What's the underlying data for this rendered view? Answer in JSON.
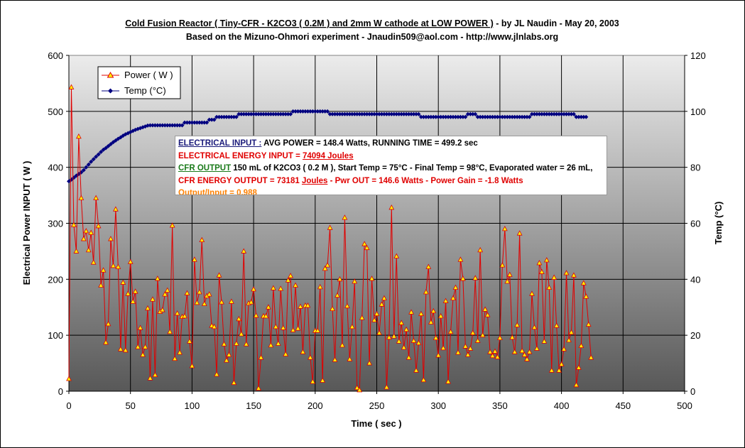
{
  "chart_data": {
    "type": "line",
    "title": "Cold Fusion Reactor ( Tiny-CFR - K2CO3 ( 0.2M ) and 2mm W cathode at LOW POWER )",
    "title_suffix": " - by JL Naudin - May 20, 2003",
    "subtitle": "Based on the Mizuno-Ohmori experiment - Jnaudin509@aol.com - http://www.jlnlabs.org",
    "xlabel": "Time ( sec )",
    "ylabel_left": "Electrical Power INPUT ( W )",
    "ylabel_right": "Temp (°C)",
    "xlim": [
      0,
      500
    ],
    "ylim_left": [
      0,
      600
    ],
    "ylim_right": [
      0,
      120
    ],
    "xticks": [
      "0",
      "50",
      "100",
      "150",
      "200",
      "250",
      "300",
      "350",
      "400",
      "450",
      "500"
    ],
    "yticks_left": [
      "0",
      "100",
      "200",
      "300",
      "400",
      "500",
      "600"
    ],
    "yticks_right": [
      "0",
      "20",
      "40",
      "60",
      "80",
      "100",
      "120"
    ],
    "grid": true,
    "legend_position": "top-left",
    "colors": {
      "power": "#e00000",
      "power_marker": "#ffff00",
      "temp": "#000080",
      "plot_top": "#e8e8e8",
      "plot_bottom": "#5a5a5a"
    },
    "series": [
      {
        "name": "Power ( W )",
        "axis": "left",
        "x_start": 0,
        "x_step": 2,
        "values": [
          22,
          543,
          297,
          250,
          455,
          345,
          272,
          286,
          252,
          283,
          230,
          345,
          295,
          189,
          216,
          87,
          120,
          272,
          224,
          325,
          222,
          75,
          194,
          73,
          174,
          231,
          160,
          178,
          79,
          113,
          65,
          79,
          148,
          23,
          164,
          29,
          201,
          142,
          145,
          173,
          180,
          106,
          296,
          58,
          139,
          69,
          133,
          134,
          175,
          89,
          45,
          235,
          158,
          177,
          270,
          156,
          170,
          173,
          117,
          115,
          30,
          207,
          159,
          84,
          55,
          65,
          160,
          15,
          85,
          129,
          102,
          250,
          84,
          157,
          159,
          182,
          135,
          5,
          60,
          134,
          134,
          150,
          82,
          184,
          115,
          85,
          183,
          113,
          66,
          198,
          206,
          109,
          189,
          112,
          151,
          70,
          153,
          153,
          60,
          17,
          108,
          108,
          186,
          19,
          219,
          225,
          292,
          147,
          56,
          171,
          200,
          82,
          310,
          152,
          57,
          115,
          196,
          6,
          2,
          131,
          263,
          256,
          50,
          201,
          127,
          138,
          104,
          155,
          166,
          7,
          96,
          328,
          98,
          241,
          89,
          122,
          78,
          110,
          60,
          141,
          90,
          37,
          86,
          138,
          20,
          177,
          222,
          123,
          143,
          95,
          64,
          134,
          77,
          161,
          17,
          106,
          166,
          185,
          69,
          235,
          201,
          80,
          65,
          76,
          104,
          202,
          90,
          252,
          100,
          146,
          136,
          70,
          63,
          71,
          61,
          95,
          225,
          290,
          196,
          208,
          96,
          70,
          118,
          282,
          72,
          65,
          57,
          70,
          174,
          114,
          76,
          229,
          213,
          89,
          234,
          185,
          37,
          203,
          117,
          37,
          48,
          75,
          211,
          91,
          105,
          207,
          11,
          42,
          81,
          193,
          169,
          119,
          60
        ]
      },
      {
        "name": "Temp (°C)",
        "axis": "right",
        "x_start": 0,
        "x_step": 2,
        "values": [
          75,
          75.6,
          76.3,
          77,
          77.6,
          78.2,
          79,
          80,
          81,
          82,
          82.9,
          83.8,
          84.6,
          85.5,
          86.3,
          86.9,
          87.6,
          88.3,
          89,
          89.6,
          90.2,
          90.7,
          91.3,
          91.8,
          92.2,
          92.6,
          93,
          93.4,
          93.7,
          94,
          94.3,
          94.6,
          94.9,
          95,
          95,
          95,
          95,
          95,
          95,
          95,
          95,
          95,
          95,
          95,
          95,
          95,
          95,
          96,
          96,
          96,
          96,
          96,
          96,
          96,
          96,
          96,
          96,
          97,
          97,
          97,
          98,
          98,
          98,
          98,
          98,
          98,
          98,
          98,
          98,
          99,
          99,
          99,
          99,
          99,
          99,
          99,
          99,
          99,
          99,
          99,
          99,
          99,
          99,
          99,
          99,
          99,
          99,
          99,
          99,
          99,
          99,
          100,
          100,
          100,
          100,
          100,
          100,
          100,
          100,
          100,
          100,
          100,
          100,
          100,
          100,
          100,
          99,
          99,
          99,
          99,
          99,
          99,
          99,
          99,
          99,
          99,
          99,
          99,
          99,
          99,
          99,
          99,
          99,
          99,
          99,
          99,
          99,
          99,
          99,
          99,
          99,
          99,
          99,
          99,
          99,
          99,
          99,
          99,
          99,
          99,
          99,
          99,
          99,
          98,
          98,
          98,
          98,
          98,
          98,
          98,
          98,
          98,
          98,
          98,
          98,
          98,
          98,
          98,
          98,
          98,
          98,
          98,
          99,
          99,
          99,
          99,
          98,
          98,
          98,
          98,
          98,
          98,
          98,
          98,
          98,
          98,
          98,
          98,
          98,
          98,
          98,
          98,
          98,
          98,
          98,
          98,
          98,
          98,
          99,
          99,
          99,
          99,
          99,
          99,
          99,
          99,
          99,
          99,
          99,
          99,
          99,
          99,
          99,
          99,
          99,
          99,
          98,
          98,
          98,
          98,
          98
        ]
      }
    ]
  },
  "legend": {
    "power_label": "Power ( W )",
    "temp_label": "Temp (°C)"
  },
  "info_box": {
    "line1_head": "ELECTRICAL INPUT :",
    "line1_rest": " AVG POWER = 148.4 Watts, RUNNING TIME = 499.2 sec",
    "line2_head": "ELECTRICAL  ENERGY INPUT = ",
    "line2_value": "74094 Joules",
    "line3_head": "CFR OUTPUT",
    "line3_rest": " 150 mL of K2CO3 ( 0.2 M ), Start Temp = 75°C - Final Temp = 98°C, Evaporated water = 26 mL,",
    "line4_head": "CFR ENERGY OUTPUT = 73181 ",
    "line4_unit": "Joules",
    "line4_rest": "  - Pwr OUT = 146.6 Watts - Power Gain = -1.8 Watts",
    "line5": "Output/Input = 0.988"
  }
}
